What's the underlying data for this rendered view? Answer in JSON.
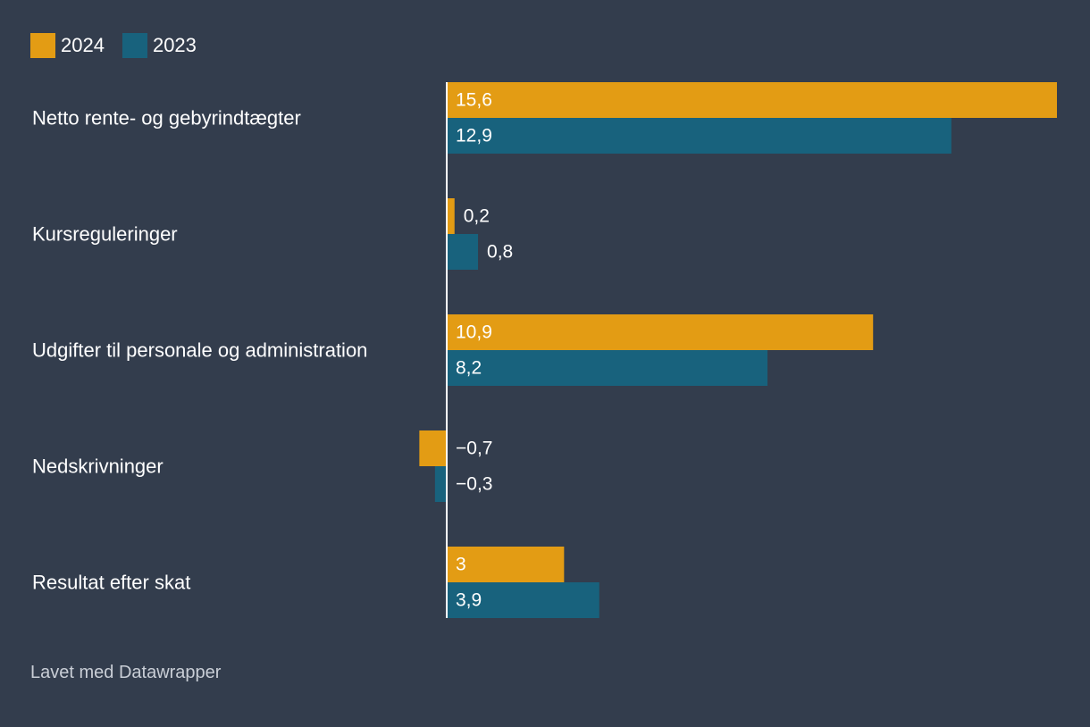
{
  "chart_data": {
    "type": "bar",
    "orientation": "horizontal",
    "categories": [
      "Netto rente- og gebyrindtægter",
      "Kursreguleringer",
      "Udgifter til personale og administration",
      "Nedskrivninger",
      "Resultat efter skat"
    ],
    "series": [
      {
        "name": "2024",
        "color": "#e39c14",
        "values": [
          15.6,
          0.2,
          10.9,
          -0.7,
          3
        ],
        "labels": [
          "15,6",
          "0,2",
          "10,9",
          "−0,7",
          "3"
        ]
      },
      {
        "name": "2023",
        "color": "#18627d",
        "values": [
          12.9,
          0.8,
          8.2,
          -0.3,
          3.9
        ],
        "labels": [
          "12,9",
          "0,8",
          "8,2",
          "−0,3",
          "3,9"
        ]
      }
    ],
    "xlim": [
      -0.7,
      15.6
    ],
    "legend": "top-left"
  },
  "footer": {
    "text": "Lavet med Datawrapper"
  }
}
